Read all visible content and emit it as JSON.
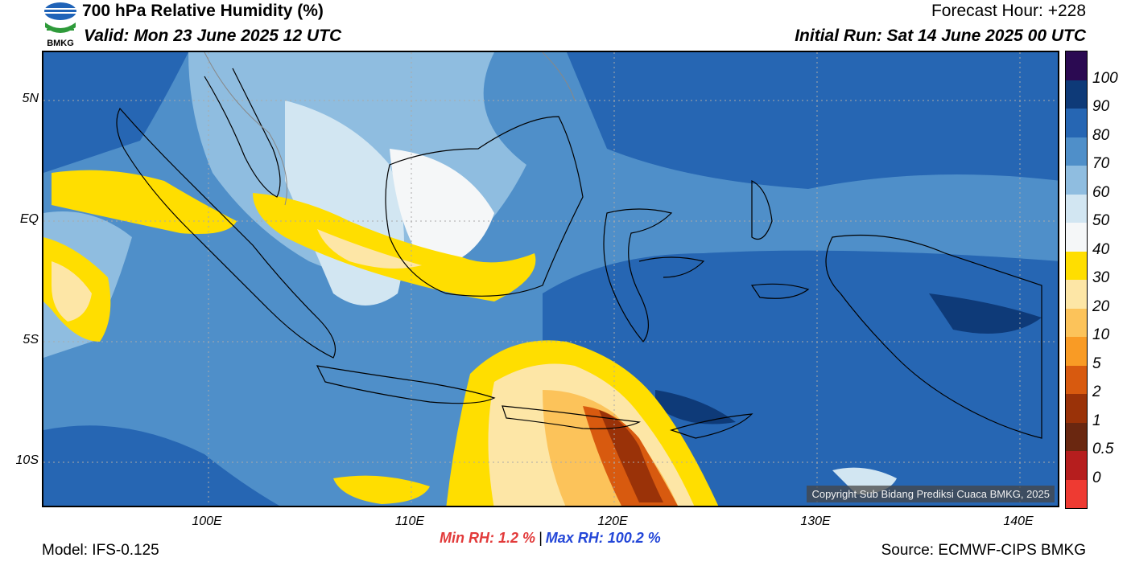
{
  "header": {
    "title": "700 hPa Relative Humidity (%)",
    "valid": "Valid: Mon 23 June 2025 12 UTC",
    "forecast_hour": "Forecast Hour: +228",
    "initial_run": "Initial Run: Sat 14 June 2025 00 UTC"
  },
  "logo": {
    "text": "BMKG"
  },
  "axes": {
    "lat_labels": [
      "5N",
      "EQ",
      "5S",
      "10S"
    ],
    "lon_labels": [
      "100E",
      "110E",
      "120E",
      "130E",
      "140E"
    ]
  },
  "colorbar": {
    "labels": [
      "100",
      "90",
      "80",
      "70",
      "60",
      "50",
      "40",
      "30",
      "20",
      "10",
      "5",
      "2",
      "1",
      "0.5",
      "0"
    ],
    "colors": [
      "#2b0a52",
      "#0e3a78",
      "#2666b3",
      "#4f8fc9",
      "#8fbde0",
      "#d2e6f2",
      "#f5f7f8",
      "#ffde00",
      "#fde6a6",
      "#fcc35a",
      "#f99b25",
      "#d85a0f",
      "#9a3208",
      "#6a2710",
      "#b61e1e",
      "#ee3a32"
    ]
  },
  "copyright": "Copyright Sub Bidang Prediksi Cuaca BMKG, 2025",
  "stats": {
    "min_rh": "Min RH:   1.2 %",
    "separator": "|",
    "max_rh": "Max RH: 100.2 %"
  },
  "footer": {
    "model": "Model: IFS-0.125",
    "source": "Source: ECMWF-CIPS BMKG"
  }
}
